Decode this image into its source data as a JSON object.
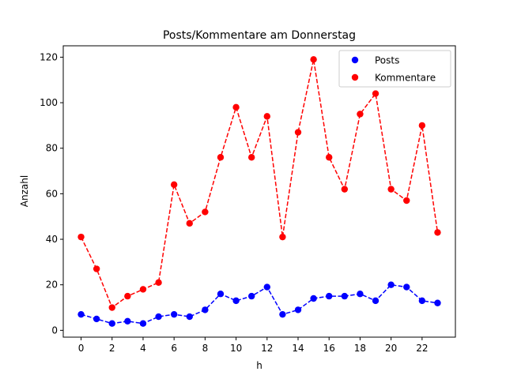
{
  "chart_data": {
    "type": "line",
    "title": "Posts/Kommentare am Donnerstag",
    "xlabel": "h",
    "ylabel": "Anzahl",
    "x": [
      0,
      1,
      2,
      3,
      4,
      5,
      6,
      7,
      8,
      9,
      10,
      11,
      12,
      13,
      14,
      15,
      16,
      17,
      18,
      19,
      20,
      21,
      22,
      23
    ],
    "xlim": [
      -1.15,
      24.15
    ],
    "ylim": [
      -3,
      125
    ],
    "xticks": [
      0,
      2,
      4,
      6,
      8,
      10,
      12,
      14,
      16,
      18,
      20,
      22
    ],
    "yticks": [
      0,
      20,
      40,
      60,
      80,
      100,
      120
    ],
    "grid": false,
    "legend_position": "top-right",
    "series": [
      {
        "name": "Posts",
        "color": "#0000ff",
        "linestyle": "dashed",
        "marker": "circle",
        "values": [
          7,
          5,
          3,
          4,
          3,
          6,
          7,
          6,
          9,
          16,
          13,
          15,
          19,
          7,
          9,
          14,
          15,
          15,
          16,
          13,
          20,
          19,
          13,
          12
        ]
      },
      {
        "name": "Kommentare",
        "color": "#ff0000",
        "linestyle": "dashed",
        "marker": "circle",
        "values": [
          41,
          27,
          10,
          15,
          18,
          21,
          64,
          47,
          52,
          76,
          98,
          76,
          94,
          41,
          87,
          119,
          76,
          62,
          95,
          104,
          62,
          57,
          90,
          43
        ]
      }
    ]
  }
}
